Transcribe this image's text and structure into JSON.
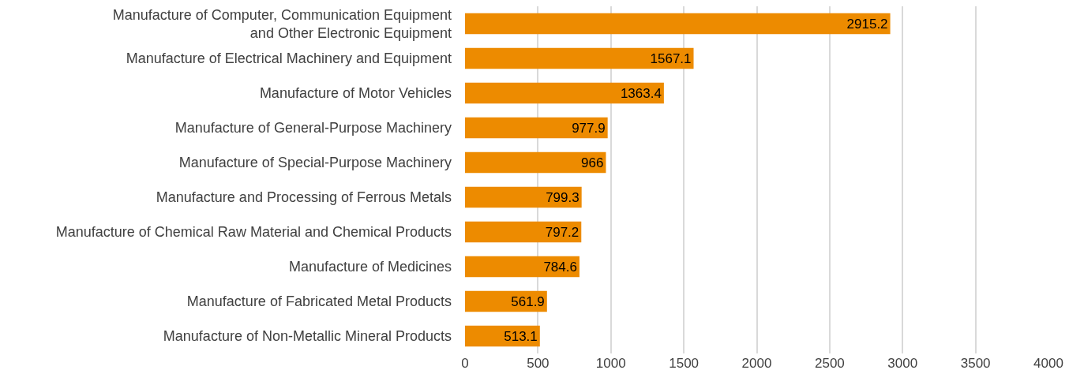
{
  "chart_data": {
    "type": "bar",
    "orientation": "horizontal",
    "categories": [
      "Manufacture of Computer, Communication Equipment\nand Other Electronic Equipment",
      "Manufacture of Electrical Machinery and Equipment",
      "Manufacture of Motor Vehicles",
      "Manufacture of General-Purpose Machinery",
      "Manufacture of Special-Purpose Machinery",
      "Manufacture and Processing of Ferrous Metals",
      "Manufacture of Chemical Raw Material and Chemical Products",
      "Manufacture of Medicines",
      "Manufacture of Fabricated Metal Products",
      "Manufacture of Non-Metallic Mineral Products"
    ],
    "values": [
      2915.2,
      1567.1,
      1363.4,
      977.9,
      966,
      799.3,
      797.2,
      784.6,
      561.9,
      513.1
    ],
    "color": "#ed8b00",
    "xlim": [
      0,
      4000
    ],
    "xticks": [
      0,
      500,
      1000,
      1500,
      2000,
      2500,
      3000,
      3500,
      4000
    ],
    "grid": "x",
    "data_labels": true
  }
}
